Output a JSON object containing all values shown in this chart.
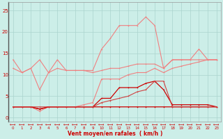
{
  "x": [
    0,
    1,
    2,
    3,
    4,
    5,
    6,
    7,
    8,
    9,
    10,
    11,
    12,
    13,
    14,
    15,
    16,
    17,
    18,
    19,
    20,
    21,
    22,
    23
  ],
  "line1": [
    13.5,
    10.5,
    11.5,
    13.5,
    10.5,
    13.5,
    11.0,
    11.0,
    11.0,
    11.0,
    16.0,
    18.5,
    21.5,
    21.5,
    21.5,
    23.5,
    21.5,
    11.5,
    13.5,
    13.5,
    13.5,
    16.0,
    13.5,
    13.5
  ],
  "line2": [
    11.5,
    10.5,
    11.5,
    6.5,
    10.5,
    11.5,
    11.0,
    11.0,
    11.0,
    10.5,
    11.0,
    11.5,
    11.5,
    12.0,
    12.5,
    12.5,
    12.5,
    11.5,
    13.5,
    13.5,
    13.5,
    13.5,
    13.5,
    13.5
  ],
  "line3": [
    2.5,
    2.5,
    2.5,
    1.5,
    2.5,
    2.5,
    2.5,
    2.5,
    3.0,
    3.5,
    9.0,
    9.0,
    9.0,
    10.0,
    10.5,
    10.5,
    11.5,
    10.5,
    11.5,
    12.0,
    12.5,
    13.0,
    13.5,
    13.5
  ],
  "line4": [
    2.5,
    2.5,
    2.5,
    2.0,
    2.5,
    2.5,
    2.5,
    2.5,
    2.5,
    2.5,
    4.5,
    4.5,
    7.0,
    7.0,
    7.0,
    8.0,
    8.5,
    6.5,
    3.0,
    3.0,
    3.0,
    3.0,
    3.0,
    2.5
  ],
  "line5": [
    2.5,
    2.5,
    2.5,
    2.0,
    2.5,
    2.5,
    2.5,
    2.5,
    2.5,
    2.5,
    2.5,
    2.5,
    2.5,
    2.5,
    2.5,
    2.5,
    2.5,
    2.5,
    2.5,
    2.5,
    2.5,
    2.5,
    2.5,
    2.5
  ],
  "line6": [
    2.5,
    2.5,
    2.5,
    2.5,
    2.5,
    2.5,
    2.5,
    2.5,
    2.5,
    2.5,
    3.5,
    4.0,
    4.5,
    5.0,
    6.0,
    6.5,
    8.5,
    8.5,
    2.5,
    2.5,
    2.5,
    2.5,
    2.5,
    2.5
  ],
  "color_light": "#f08080",
  "color_dark": "#cc0000",
  "color_mid": "#d04040",
  "bg_color": "#cceee8",
  "grid_color": "#aad4ce",
  "xlabel": "Vent moyen/en rafales  ( km/h )",
  "ylim": [
    -1,
    27
  ],
  "xlim": [
    -0.5,
    23.5
  ],
  "yticks": [
    0,
    5,
    10,
    15,
    20,
    25
  ],
  "xticks": [
    0,
    1,
    2,
    3,
    4,
    5,
    6,
    7,
    8,
    9,
    10,
    11,
    12,
    13,
    14,
    15,
    16,
    17,
    18,
    19,
    20,
    21,
    22,
    23
  ],
  "tick_arrow": "←→"
}
